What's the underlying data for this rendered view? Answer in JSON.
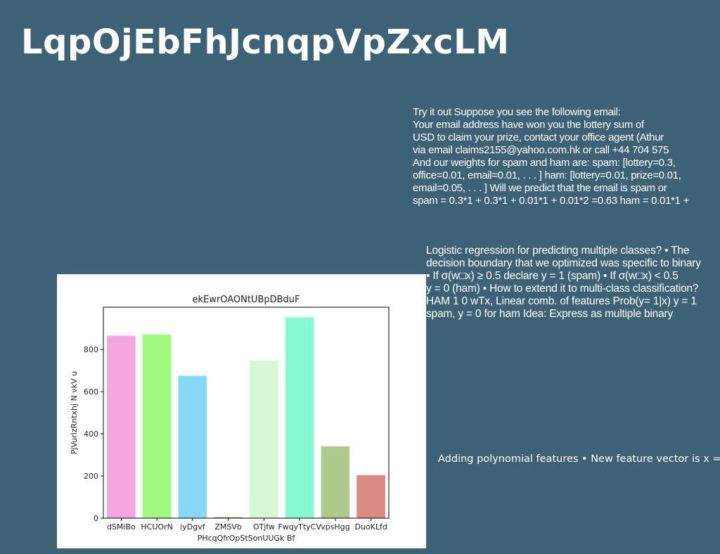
{
  "slide": {
    "title": "LqpOjEbFhJcnqpVpZxcLM",
    "block1_lines": [
      "Try it out Suppose you see the following email:",
      "Your email address have won you the lottery sum of",
      "USD to claim your prize, contact your office agent (Athur",
      "via email claims2155@yahoo.com.hk or call +44 704 575",
      "And our weights for spam and ham are: spam: [lottery=0.3,",
      "office=0.01, email=0.01, . . . ] ham: [lottery=0.01, prize=0.01,",
      "email=0.05, . . . ] Will we predict that the email is spam or",
      "spam = 0.3*1 + 0.3*1 + 0.01*1 + 0.01*2 =0.63 ham = 0.01*1 +"
    ],
    "block2_lines": [
      "Logistic regression for predicting multiple classes? • The",
      "decision boundary that we optimized was specific to binary",
      "• If σ(w□x) ≥ 0.5 declare y = 1 (spam) • If σ(w□x) < 0.5",
      "y = 0 (ham) • How to extend it to multi-class classification?",
      "HAM 1 0 wTx, Linear comb. of features Prob(y= 1|x) y = 1",
      "spam, y = 0 for ham Idea: Express as multiple binary"
    ],
    "block3_text": "Adding polynomial features • New feature vector is x ="
  },
  "chart_data": {
    "type": "bar",
    "title": "ekEwrOAONtUBpDBduF",
    "xlabel": "PHcqQfrOpStSonUUGk Bf",
    "ylabel": "PjVurlzRntxhj N vkV u",
    "categories": [
      "dSMiBo",
      "HCUOrN",
      "iyDgvf",
      "ZMSVb",
      "OTjfw",
      "FwqyTtyCV",
      "vpsHgg",
      "DuoKLfd"
    ],
    "values": [
      865,
      870,
      675,
      5,
      748,
      952,
      340,
      204
    ],
    "colors": [
      "#f4a6de",
      "#a0fa7e",
      "#86d8f6",
      "#9fbc8f",
      "#d6f8d4",
      "#86f8d2",
      "#adca8c",
      "#dc8a86"
    ],
    "ylim": [
      0,
      1000
    ],
    "yticks": [
      0,
      200,
      400,
      600,
      800
    ],
    "grid": false,
    "legend": "none"
  }
}
